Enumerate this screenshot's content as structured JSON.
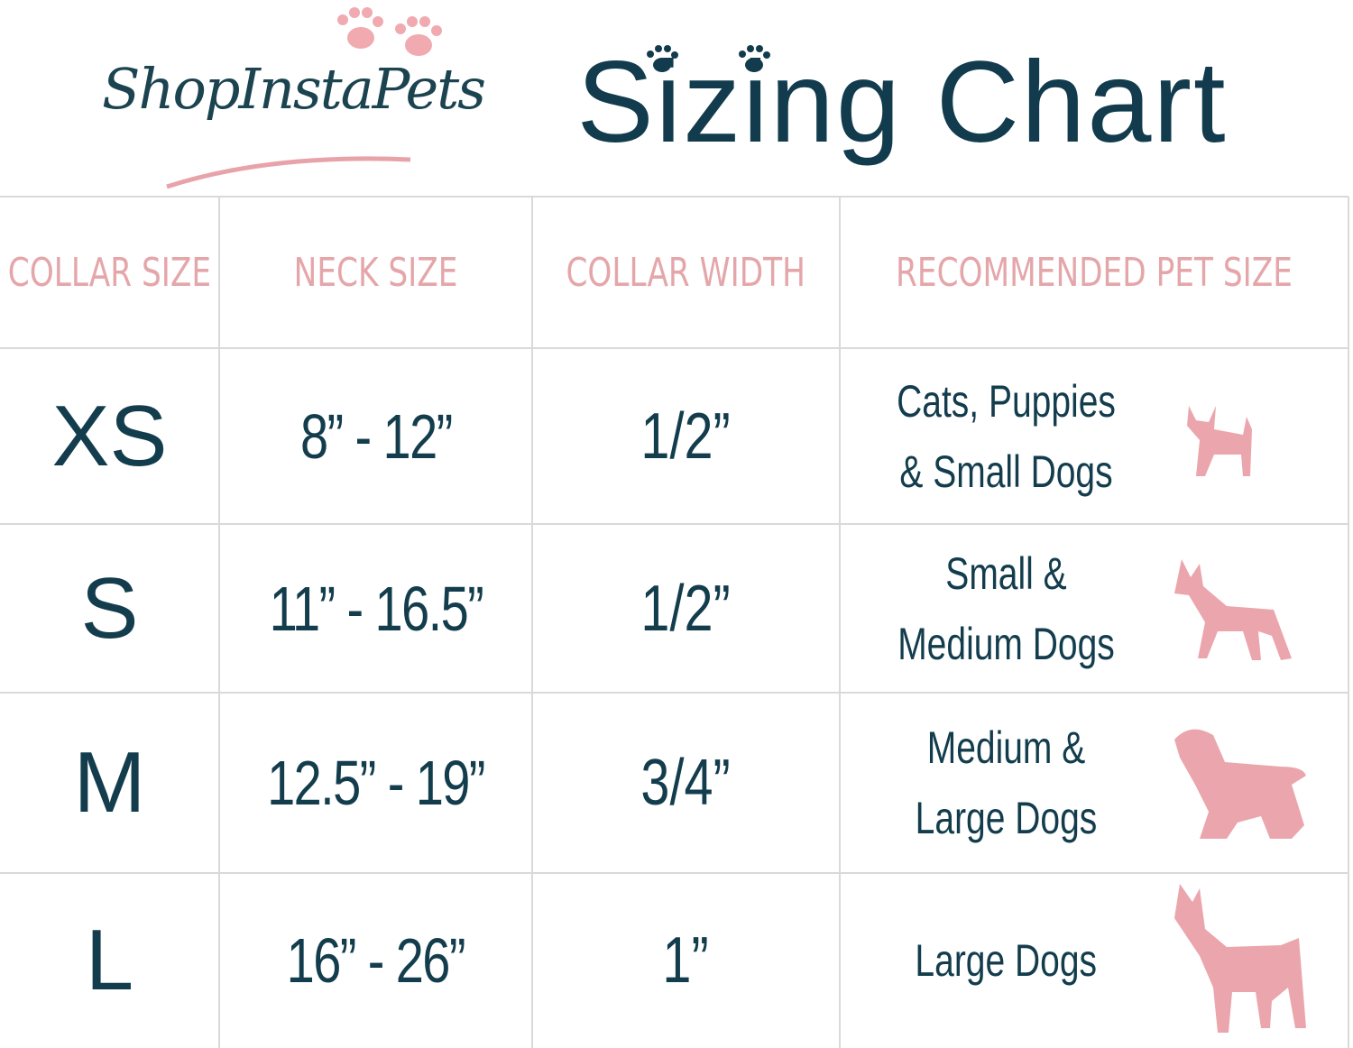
{
  "header": {
    "logo": "ShopInstaPets",
    "title": "Sizing Chart"
  },
  "table": {
    "columns": [
      "COLLAR SIZE",
      "NECK SIZE",
      "COLLAR WIDTH",
      "RECOMMENDED PET SIZE"
    ],
    "rows": [
      [
        "XS",
        "8” - 12”",
        "1/2”",
        "Cats, Puppies & Small Dogs"
      ],
      [
        "S",
        "11” - 16.5”",
        "1/2”",
        "Small & Medium Dogs"
      ],
      [
        "M",
        "12.5” - 19”",
        "3/4”",
        "Medium & Large Dogs"
      ],
      [
        "L",
        "16” - 26”",
        "1”",
        "Large Dogs"
      ]
    ]
  }
}
